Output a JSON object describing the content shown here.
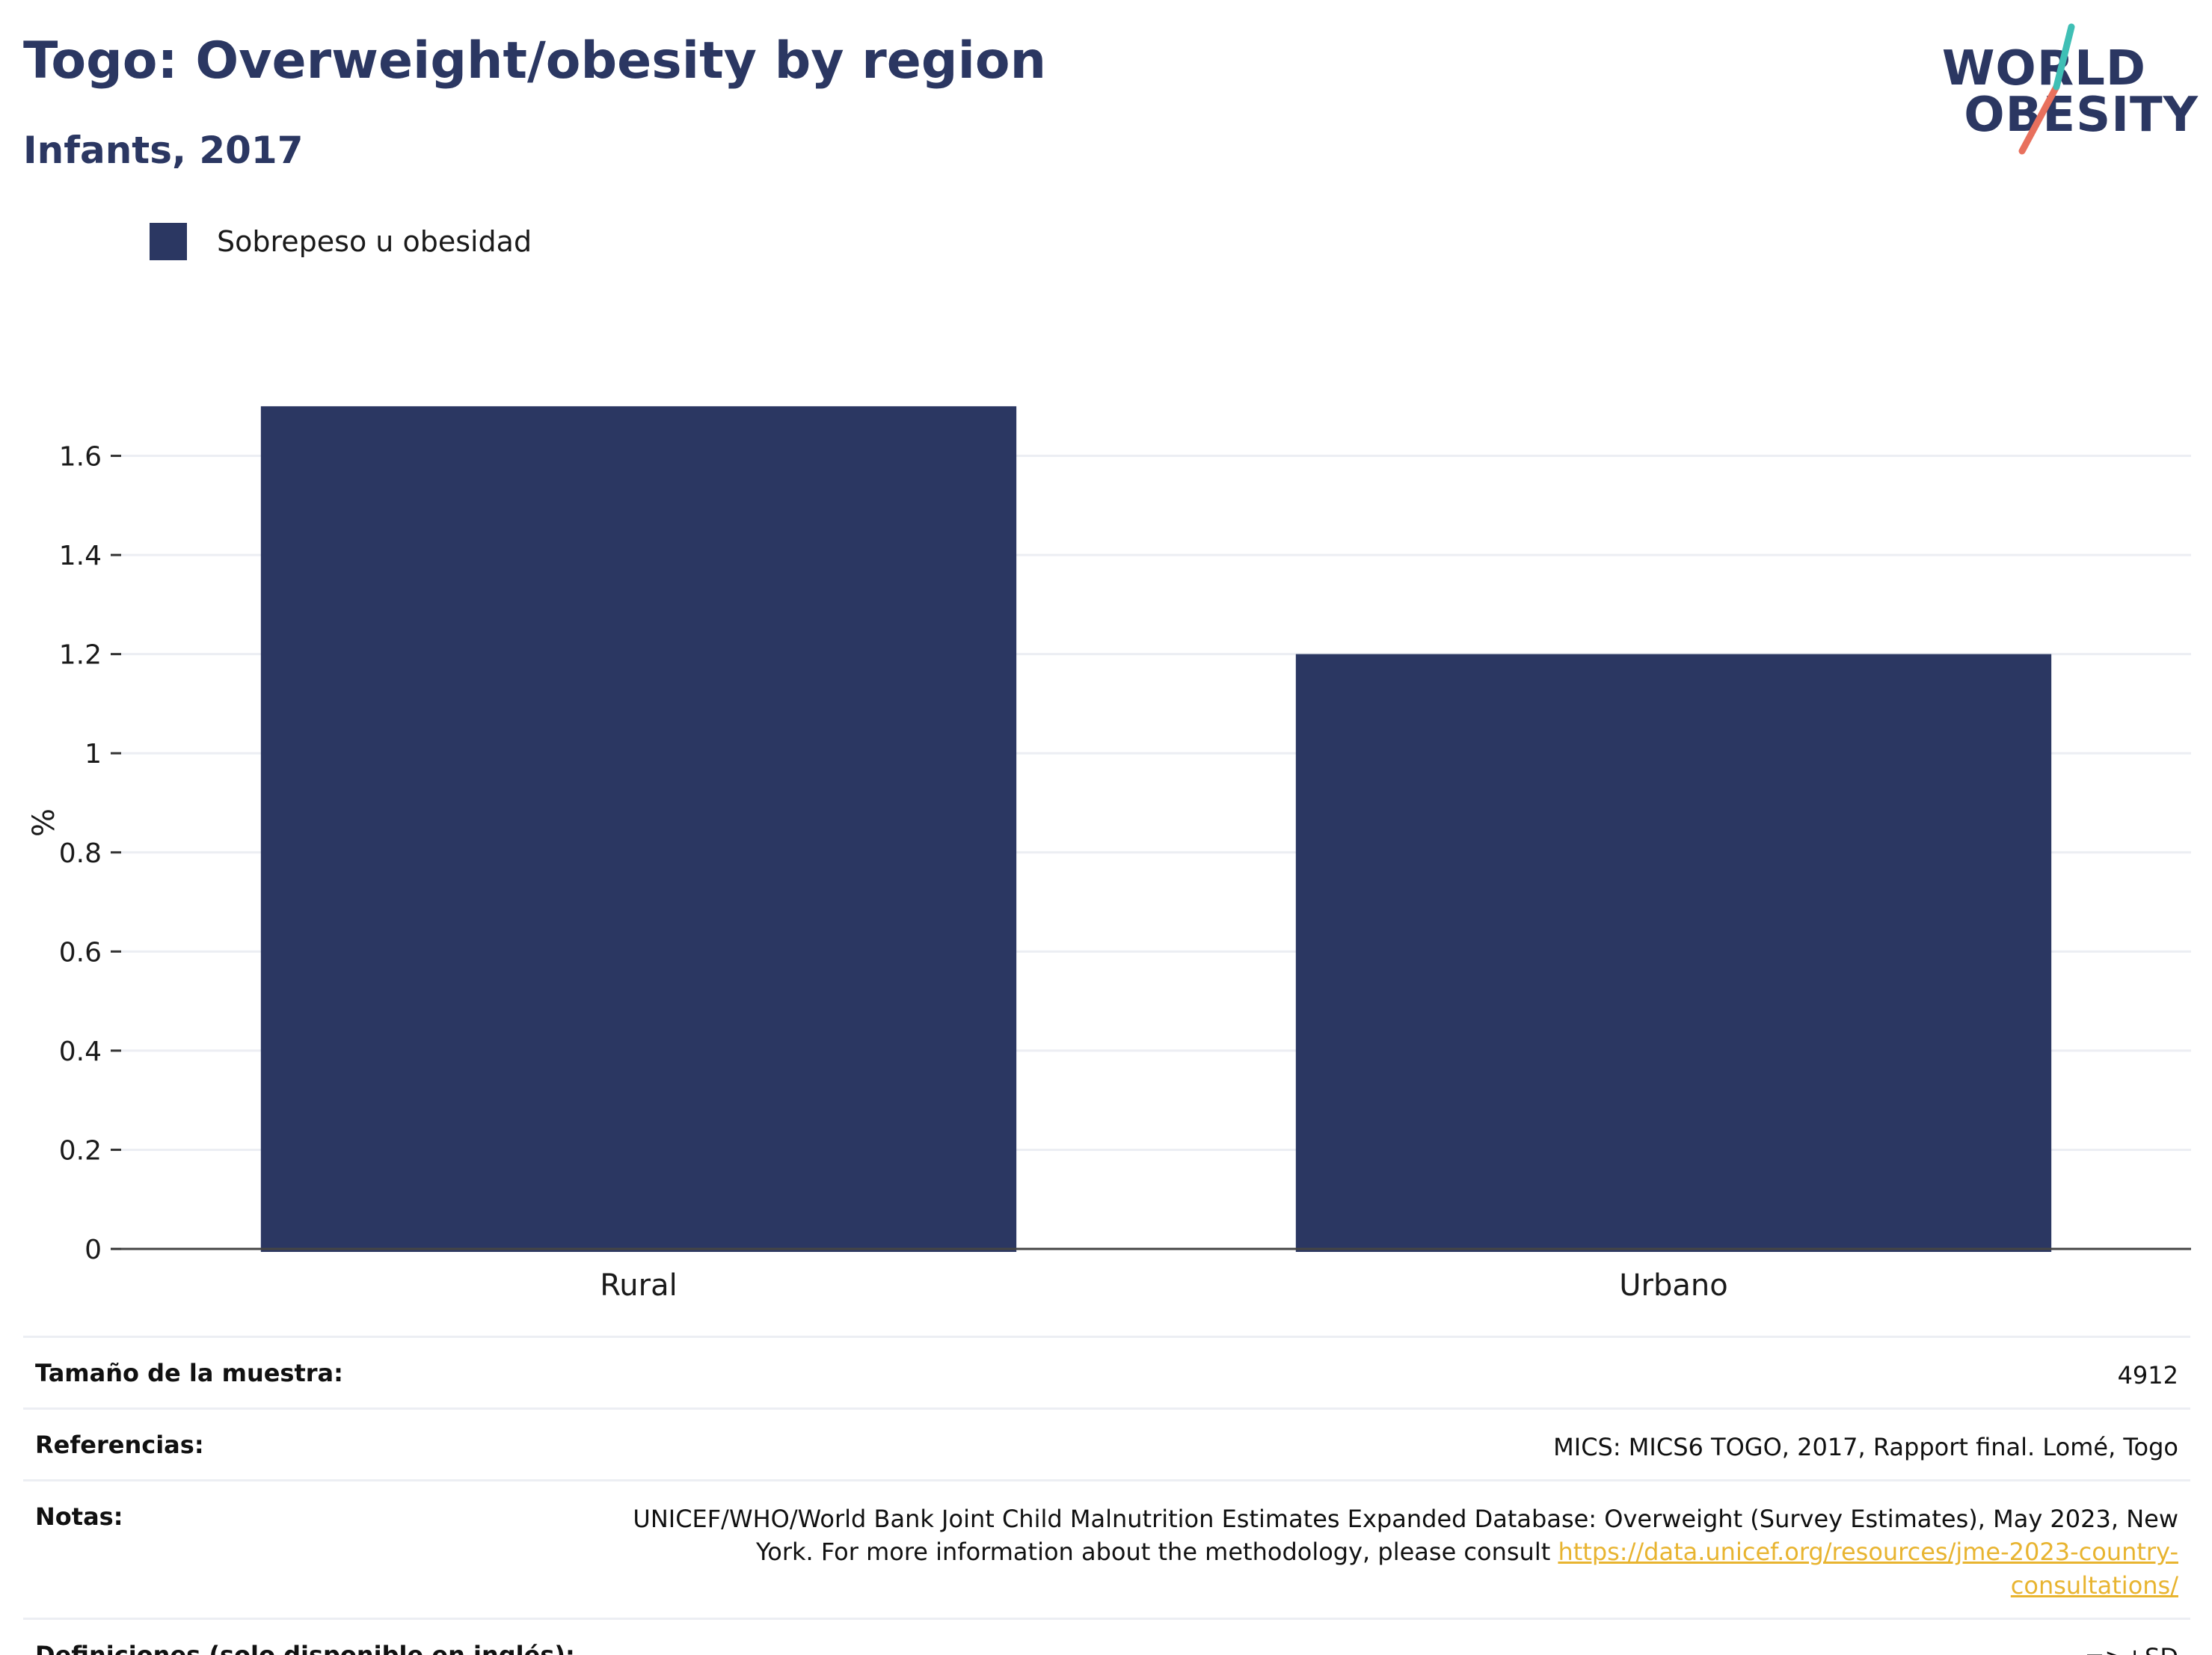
{
  "header": {
    "title": "Togo: Overweight/obesity by region",
    "subtitle": "Infants, 2017"
  },
  "logo": {
    "line1": "WORLD",
    "line2": "OBESITY",
    "colors": {
      "navy": "#2b3762",
      "teal": "#3fbfb5",
      "coral": "#e8705d"
    }
  },
  "chart_data": {
    "type": "bar",
    "categories": [
      "Rural",
      "Urbano"
    ],
    "series": [
      {
        "name": "Sobrepeso u obesidad",
        "values": [
          1.7,
          1.2
        ],
        "color": "#2b3762"
      }
    ],
    "xlabel": "",
    "ylabel": "%",
    "ylim": [
      0,
      1.72
    ],
    "yticks": [
      0,
      0.2,
      0.4,
      0.6,
      0.8,
      1,
      1.2,
      1.4,
      1.6
    ],
    "ytick_labels": [
      "0",
      "0.2",
      "0.4",
      "0.6",
      "0.8",
      "1",
      "1.2",
      "1.4",
      "1.6"
    ],
    "grid": true,
    "legend_position": "top-left"
  },
  "info": {
    "rows": [
      {
        "key": "Tamaño de la muestra:",
        "value": "4912"
      },
      {
        "key": "Referencias:",
        "value": "MICS: MICS6 TOGO, 2017, Rapport final. Lomé, Togo"
      },
      {
        "key": "Notas:",
        "value": "UNICEF/WHO/World Bank Joint Child Malnutrition Estimates Expanded Database: Overweight (Survey Estimates), May 2023, New York. For more information about the methodology, please consult ",
        "link": "https://data.unicef.org/resources/jme-2023-country-consultations/"
      },
      {
        "key": "Definiciones (solo disponible en inglés):",
        "value": "=>+SD"
      }
    ]
  }
}
